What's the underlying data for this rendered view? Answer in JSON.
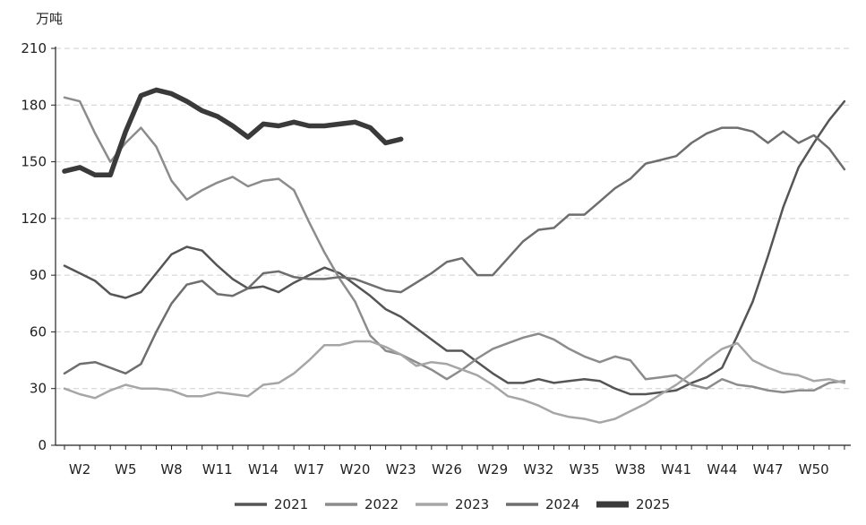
{
  "chart_data": {
    "type": "line",
    "title": "",
    "ylabel": "万吨",
    "xlabel": "",
    "ylim": [
      0,
      210
    ],
    "yticks": [
      "0",
      "30",
      "60",
      "90",
      "120",
      "150",
      "180",
      "210"
    ],
    "xlim": [
      1,
      53
    ],
    "xticks": [
      {
        "w": 2,
        "label": "W2"
      },
      {
        "w": 5,
        "label": "W5"
      },
      {
        "w": 8,
        "label": "W8"
      },
      {
        "w": 11,
        "label": "W11"
      },
      {
        "w": 14,
        "label": "W14"
      },
      {
        "w": 17,
        "label": "W17"
      },
      {
        "w": 20,
        "label": "W20"
      },
      {
        "w": 23,
        "label": "W23"
      },
      {
        "w": 26,
        "label": "W26"
      },
      {
        "w": 29,
        "label": "W29"
      },
      {
        "w": 32,
        "label": "W32"
      },
      {
        "w": 35,
        "label": "W35"
      },
      {
        "w": 38,
        "label": "W38"
      },
      {
        "w": 41,
        "label": "W41"
      },
      {
        "w": 44,
        "label": "W44"
      },
      {
        "w": 47,
        "label": "W47"
      },
      {
        "w": 50,
        "label": "W50"
      }
    ],
    "grid": true,
    "legend": "bottom",
    "series": [
      {
        "name": "2021",
        "color": "#555555",
        "width": 2.5,
        "x": [
          1,
          2,
          3,
          4,
          5,
          6,
          7,
          8,
          9,
          10,
          11,
          12,
          13,
          14,
          15,
          16,
          17,
          18,
          19,
          20,
          21,
          22,
          23,
          24,
          25,
          26,
          27,
          28,
          29,
          30,
          31,
          32,
          33,
          34,
          35,
          36,
          37,
          38,
          39,
          40,
          41,
          42,
          43,
          44,
          45,
          46,
          47,
          48,
          49,
          50,
          51,
          52
        ],
        "y": [
          95,
          91,
          87,
          80,
          78,
          81,
          91,
          101,
          105,
          103,
          95,
          88,
          83,
          84,
          81,
          86,
          90,
          94,
          91,
          85,
          79,
          72,
          68,
          62,
          56,
          50,
          50,
          44,
          38,
          33,
          33,
          35,
          33,
          34,
          35,
          34,
          30,
          27,
          27,
          28,
          29,
          33,
          36,
          41,
          58,
          76,
          100,
          126,
          147,
          160,
          172,
          182
        ]
      },
      {
        "name": "2022",
        "color": "#8c8c8c",
        "width": 2.5,
        "x": [
          1,
          2,
          3,
          4,
          5,
          6,
          7,
          8,
          9,
          10,
          11,
          12,
          13,
          14,
          15,
          16,
          17,
          18,
          19,
          20,
          21,
          22,
          23,
          24,
          25,
          26,
          27,
          28,
          29,
          30,
          31,
          32,
          33,
          34,
          35,
          36,
          37,
          38,
          39,
          40,
          41,
          42,
          43,
          44,
          45,
          46,
          47,
          48,
          49,
          50,
          51,
          52
        ],
        "y": [
          184,
          182,
          165,
          150,
          160,
          168,
          158,
          140,
          130,
          135,
          139,
          142,
          137,
          140,
          141,
          135,
          118,
          102,
          88,
          76,
          58,
          50,
          48,
          44,
          40,
          35,
          40,
          46,
          51,
          54,
          57,
          59,
          56,
          51,
          47,
          44,
          47,
          45,
          35,
          36,
          37,
          32,
          30,
          35,
          32,
          31,
          29,
          28,
          29,
          29,
          33,
          34
        ]
      },
      {
        "name": "2023",
        "color": "#a6a6a6",
        "width": 2.5,
        "x": [
          1,
          2,
          3,
          4,
          5,
          6,
          7,
          8,
          9,
          10,
          11,
          12,
          13,
          14,
          15,
          16,
          17,
          18,
          19,
          20,
          21,
          22,
          23,
          24,
          25,
          26,
          27,
          28,
          29,
          30,
          31,
          32,
          33,
          34,
          35,
          36,
          37,
          38,
          39,
          40,
          41,
          42,
          43,
          44,
          45,
          46,
          47,
          48,
          49,
          50,
          51,
          52
        ],
        "y": [
          30,
          27,
          25,
          29,
          32,
          30,
          30,
          29,
          26,
          26,
          28,
          27,
          26,
          32,
          33,
          38,
          45,
          53,
          53,
          55,
          55,
          52,
          48,
          42,
          44,
          43,
          40,
          37,
          32,
          26,
          24,
          21,
          17,
          15,
          14,
          12,
          14,
          18,
          22,
          27,
          32,
          38,
          45,
          51,
          54,
          45,
          41,
          38,
          37,
          34,
          35,
          33
        ]
      },
      {
        "name": "2024",
        "color": "#6e6e6e",
        "width": 2.5,
        "x": [
          1,
          2,
          3,
          4,
          5,
          6,
          7,
          8,
          9,
          10,
          11,
          12,
          13,
          14,
          15,
          16,
          17,
          18,
          19,
          20,
          21,
          22,
          23,
          24,
          25,
          26,
          27,
          28,
          29,
          30,
          31,
          32,
          33,
          34,
          35,
          36,
          37,
          38,
          39,
          40,
          41,
          42,
          43,
          44,
          45,
          46,
          47,
          48,
          49,
          50,
          51,
          52
        ],
        "y": [
          38,
          43,
          44,
          41,
          38,
          43,
          60,
          75,
          85,
          87,
          80,
          79,
          83,
          91,
          92,
          89,
          88,
          88,
          89,
          88,
          85,
          82,
          81,
          86,
          91,
          97,
          99,
          90,
          90,
          99,
          108,
          114,
          115,
          122,
          122,
          129,
          136,
          141,
          149,
          151,
          153,
          160,
          165,
          168,
          168,
          166,
          160,
          166,
          160,
          164,
          157,
          146
        ]
      },
      {
        "name": "2025",
        "color": "#3a3a3a",
        "width": 5.5,
        "x": [
          1,
          2,
          3,
          4,
          5,
          6,
          7,
          8,
          9,
          10,
          11,
          12,
          13,
          14,
          15,
          16,
          17,
          18,
          19,
          20,
          21,
          22,
          23
        ],
        "y": [
          145,
          147,
          143,
          143,
          166,
          185,
          188,
          186,
          182,
          177,
          174,
          169,
          163,
          170,
          169,
          171,
          169,
          169,
          170,
          171,
          168,
          160,
          162
        ]
      }
    ]
  }
}
